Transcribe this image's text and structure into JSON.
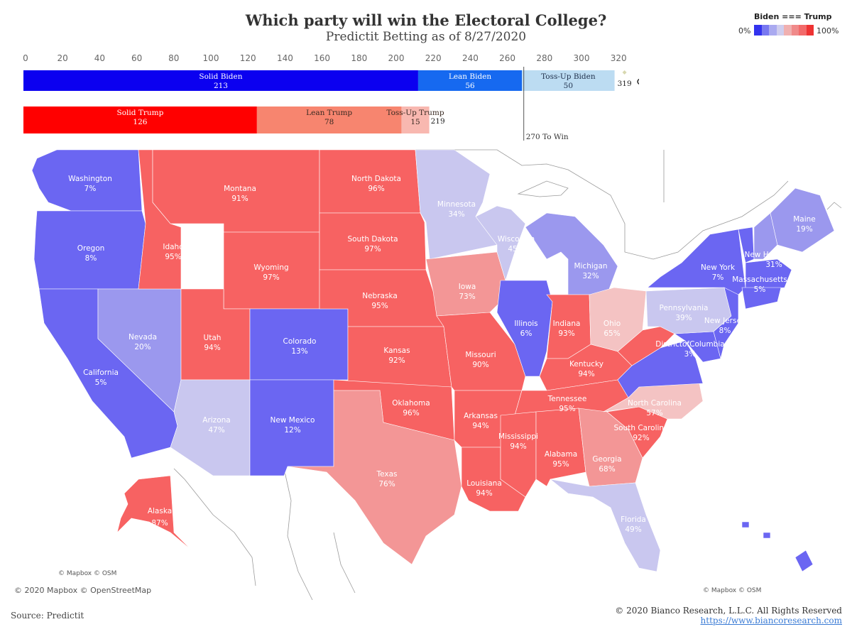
{
  "header": {
    "title": "Which party will win the Electoral College?",
    "subtitle": "Predictit Betting as of 8/27/2020"
  },
  "legend": {
    "title": "Biden === Trump",
    "low_label": "0%",
    "high_label": "100%",
    "colors": [
      "#3333ee",
      "#7878f0",
      "#aaaaf0",
      "#cfcdee",
      "#f0b0b0",
      "#f08a8a",
      "#f26a6a",
      "#ee3333"
    ]
  },
  "bar_chart": {
    "ticks": [
      0,
      20,
      40,
      60,
      80,
      100,
      120,
      140,
      160,
      180,
      200,
      220,
      240,
      260,
      280,
      300,
      320
    ],
    "biden": {
      "segments": [
        {
          "label": "Solid Biden",
          "value": 213,
          "color": "#0b00f0",
          "text_color": "#ffffff"
        },
        {
          "label": "Lean Biden",
          "value": 56,
          "color": "#1669f0",
          "text_color": "#ffffff"
        },
        {
          "label": "Toss-Up Biden",
          "value": 50,
          "color": "#bcdcf2",
          "text_color": "#1f2f4a"
        }
      ],
      "total_label": "319"
    },
    "trump": {
      "segments": [
        {
          "label": "Solid Trump",
          "value": 126,
          "color": "#ff0000",
          "text_color": "#ffffff"
        },
        {
          "label": "Lean Trump",
          "value": 78,
          "color": "#f7856f",
          "text_color": "#3a2a22"
        },
        {
          "label": "Toss-Up Trump",
          "value": 15,
          "color": "#f8b8b0",
          "text_color": "#3a2a22"
        }
      ],
      "total_label": "219"
    },
    "threshold": {
      "value": 270,
      "label": "270 To Win"
    }
  },
  "map": {
    "states": [
      {
        "name": "Washington",
        "pct": "7%",
        "value": 7,
        "color": "#6b66f2"
      },
      {
        "name": "Oregon",
        "pct": "8%",
        "value": 8,
        "color": "#6b66f2"
      },
      {
        "name": "California",
        "pct": "5%",
        "value": 5,
        "color": "#6b66f2"
      },
      {
        "name": "Nevada",
        "pct": "20%",
        "value": 20,
        "color": "#9b98ee"
      },
      {
        "name": "Idaho",
        "pct": "95%",
        "value": 95,
        "color": "#f76262"
      },
      {
        "name": "Montana",
        "pct": "91%",
        "value": 91,
        "color": "#f76262"
      },
      {
        "name": "Wyoming",
        "pct": "97%",
        "value": 97,
        "color": "#f76262"
      },
      {
        "name": "Utah",
        "pct": "94%",
        "value": 94,
        "color": "#f76262"
      },
      {
        "name": "Arizona",
        "pct": "47%",
        "value": 47,
        "color": "#c9c7ef"
      },
      {
        "name": "Colorado",
        "pct": "13%",
        "value": 13,
        "color": "#6b66f2"
      },
      {
        "name": "New Mexico",
        "pct": "12%",
        "value": 12,
        "color": "#6b66f2"
      },
      {
        "name": "North Dakota",
        "pct": "96%",
        "value": 96,
        "color": "#f76262"
      },
      {
        "name": "South Dakota",
        "pct": "97%",
        "value": 97,
        "color": "#f76262"
      },
      {
        "name": "Nebraska",
        "pct": "95%",
        "value": 95,
        "color": "#f76262"
      },
      {
        "name": "Kansas",
        "pct": "92%",
        "value": 92,
        "color": "#f76262"
      },
      {
        "name": "Oklahoma",
        "pct": "96%",
        "value": 96,
        "color": "#f76262"
      },
      {
        "name": "Texas",
        "pct": "76%",
        "value": 76,
        "color": "#f39696"
      },
      {
        "name": "Minnesota",
        "pct": "34%",
        "value": 34,
        "color": "#c9c7ef"
      },
      {
        "name": "Iowa",
        "pct": "73%",
        "value": 73,
        "color": "#f39696"
      },
      {
        "name": "Missouri",
        "pct": "90%",
        "value": 90,
        "color": "#f76262"
      },
      {
        "name": "Arkansas",
        "pct": "94%",
        "value": 94,
        "color": "#f76262"
      },
      {
        "name": "Louisiana",
        "pct": "94%",
        "value": 94,
        "color": "#f76262"
      },
      {
        "name": "Wisconsin",
        "pct": "45%",
        "value": 45,
        "color": "#c9c7ef"
      },
      {
        "name": "Illinois",
        "pct": "6%",
        "value": 6,
        "color": "#6b66f2"
      },
      {
        "name": "Michigan",
        "pct": "32%",
        "value": 32,
        "color": "#9b98ee"
      },
      {
        "name": "Indiana",
        "pct": "93%",
        "value": 93,
        "color": "#f76262"
      },
      {
        "name": "Ohio",
        "pct": "65%",
        "value": 65,
        "color": "#f4c3c3"
      },
      {
        "name": "Kentucky",
        "pct": "94%",
        "value": 94,
        "color": "#f76262"
      },
      {
        "name": "Tennessee",
        "pct": "95%",
        "value": 95,
        "color": "#f76262"
      },
      {
        "name": "Mississippi",
        "pct": "94%",
        "value": 94,
        "color": "#f76262"
      },
      {
        "name": "Alabama",
        "pct": "95%",
        "value": 95,
        "color": "#f76262"
      },
      {
        "name": "Georgia",
        "pct": "68%",
        "value": 68,
        "color": "#f39696"
      },
      {
        "name": "Florida",
        "pct": "49%",
        "value": 49,
        "color": "#c9c7ef"
      },
      {
        "name": "South Carolina",
        "pct": "92%",
        "value": 92,
        "color": "#f76262"
      },
      {
        "name": "North Carolina",
        "pct": "57%",
        "value": 57,
        "color": "#f4c3c3"
      },
      {
        "name": "DistrictofColumbia",
        "pct": "3%",
        "value": 3,
        "color": "#6b66f2"
      },
      {
        "name": "Pennsylvania",
        "pct": "39%",
        "value": 39,
        "color": "#c9c7ef"
      },
      {
        "name": "New York",
        "pct": "7%",
        "value": 7,
        "color": "#6b66f2"
      },
      {
        "name": "New Jersey",
        "pct": "8%",
        "value": 8,
        "color": "#6b66f2"
      },
      {
        "name": "New Hampshire",
        "pct": "31%",
        "value": 31,
        "color": "#9b98ee"
      },
      {
        "name": "Massachusetts",
        "pct": "5%",
        "value": 5,
        "color": "#6b66f2"
      },
      {
        "name": "Maine",
        "pct": "19%",
        "value": 19,
        "color": "#9b98ee"
      },
      {
        "name": "Alaska",
        "pct": "87%",
        "value": 87,
        "color": "#f76262"
      },
      {
        "name": "Hawaii",
        "pct": "",
        "value": null,
        "color": "#6b66f2"
      }
    ]
  },
  "footer": {
    "attribution_main": "© 2020 Mapbox © OpenStreetMap",
    "attribution_inset": "© Mapbox © OSM",
    "source": "Source: Predictit",
    "copyright": "© 2020 Bianco Research, L.L.C. All Rights Reserved",
    "url": "https://www.biancoresearch.com"
  }
}
